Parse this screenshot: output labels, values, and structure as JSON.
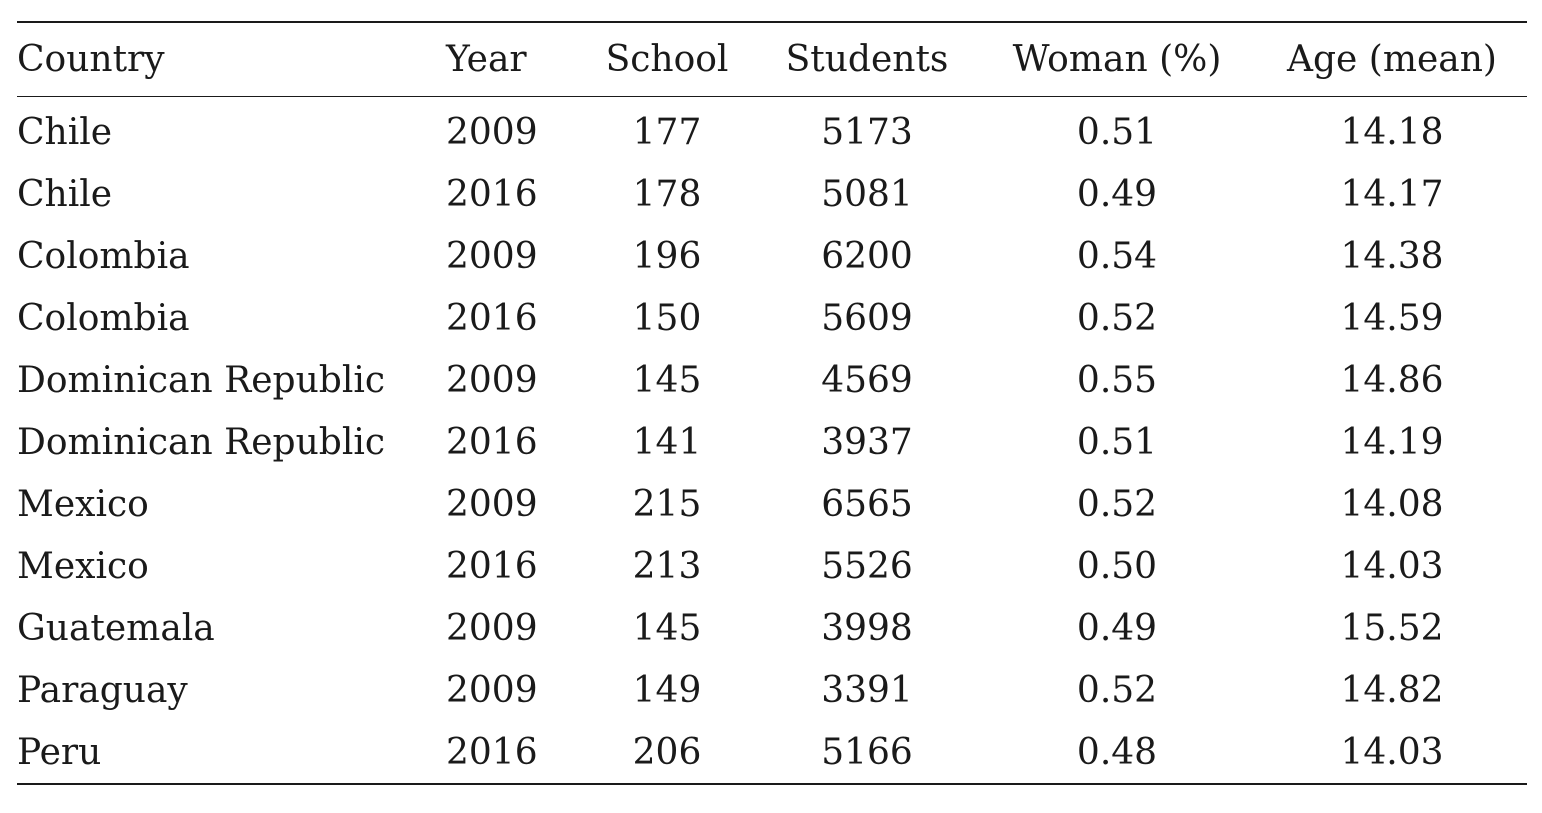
{
  "table": {
    "headers": [
      "Country",
      "Year",
      "School",
      "Students",
      "Woman (%)",
      "Age (mean)"
    ],
    "rows": [
      [
        "Chile",
        "2009",
        "177",
        "5173",
        "0.51",
        "14.18"
      ],
      [
        "Chile",
        "2016",
        "178",
        "5081",
        "0.49",
        "14.17"
      ],
      [
        "Colombia",
        "2009",
        "196",
        "6200",
        "0.54",
        "14.38"
      ],
      [
        "Colombia",
        "2016",
        "150",
        "5609",
        "0.52",
        "14.59"
      ],
      [
        "Dominican Republic",
        "2009",
        "145",
        "4569",
        "0.55",
        "14.86"
      ],
      [
        "Dominican Republic",
        "2016",
        "141",
        "3937",
        "0.51",
        "14.19"
      ],
      [
        "Mexico",
        "2009",
        "215",
        "6565",
        "0.52",
        "14.08"
      ],
      [
        "Mexico",
        "2016",
        "213",
        "5526",
        "0.50",
        "14.03"
      ],
      [
        "Guatemala",
        "2009",
        "145",
        "3998",
        "0.49",
        "15.52"
      ],
      [
        "Paraguay",
        "2009",
        "149",
        "3391",
        "0.52",
        "14.82"
      ],
      [
        "Peru",
        "2016",
        "206",
        "5166",
        "0.48",
        "14.03"
      ]
    ]
  }
}
